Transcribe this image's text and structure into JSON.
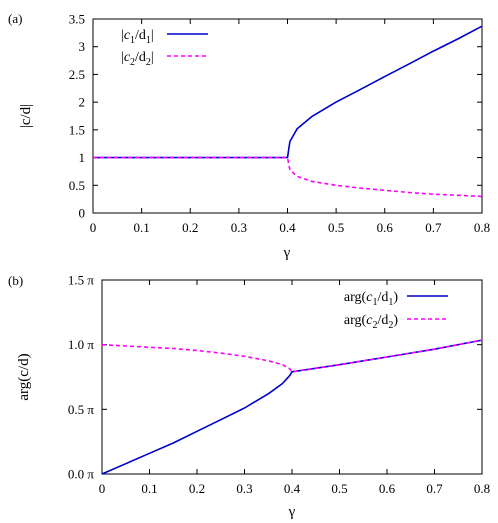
{
  "chart_data": [
    {
      "panel_label": "(a)",
      "type": "line",
      "xlabel": "γ",
      "ylabel": "|c/d|",
      "xlim": [
        0,
        0.8
      ],
      "ylim": [
        0,
        3.5
      ],
      "xticks": [
        0,
        0.1,
        0.2,
        0.3,
        0.4,
        0.5,
        0.6,
        0.7,
        0.8
      ],
      "xtick_labels": [
        "0",
        "0.1",
        "0.2",
        "0.3",
        "0.4",
        "0.5",
        "0.6",
        "0.7",
        "0.8"
      ],
      "yticks": [
        0,
        0.5,
        1,
        1.5,
        2,
        2.5,
        3,
        3.5
      ],
      "ytick_labels": [
        "0",
        "0.5",
        "1",
        "1.5",
        "2",
        "2.5",
        "3",
        "3.5"
      ],
      "grid": false,
      "legend_position": "top-left",
      "series": [
        {
          "name": "|c1/d1|",
          "color": "#0000cc",
          "style": "solid",
          "x": [
            0,
            0.1,
            0.2,
            0.3,
            0.39,
            0.4,
            0.405,
            0.42,
            0.45,
            0.5,
            0.55,
            0.6,
            0.65,
            0.7,
            0.75,
            0.8
          ],
          "y": [
            1,
            1,
            1,
            1,
            1,
            1,
            1.29,
            1.52,
            1.74,
            2.0,
            2.23,
            2.46,
            2.69,
            2.92,
            3.14,
            3.37
          ]
        },
        {
          "name": "|c2/d2|",
          "color": "#ff00ff",
          "style": "dashed",
          "x": [
            0,
            0.1,
            0.2,
            0.3,
            0.39,
            0.4,
            0.405,
            0.42,
            0.45,
            0.5,
            0.55,
            0.6,
            0.65,
            0.7,
            0.75,
            0.8
          ],
          "y": [
            1,
            1,
            1,
            1,
            1,
            1,
            0.78,
            0.66,
            0.57,
            0.5,
            0.45,
            0.41,
            0.37,
            0.34,
            0.32,
            0.3
          ]
        }
      ]
    },
    {
      "panel_label": "(b)",
      "type": "line",
      "xlabel": "γ",
      "ylabel": "arg(c/d)",
      "xlim": [
        0,
        0.8
      ],
      "ylim": [
        0,
        1.5
      ],
      "xticks": [
        0,
        0.1,
        0.2,
        0.3,
        0.4,
        0.5,
        0.6,
        0.7,
        0.8
      ],
      "xtick_labels": [
        "0",
        "0.1",
        "0.2",
        "0.3",
        "0.4",
        "0.5",
        "0.6",
        "0.7",
        "0.8"
      ],
      "yticks": [
        0,
        0.5,
        1,
        1.5
      ],
      "ytick_labels": [
        "0.0 π",
        "0.5 π",
        "1.0 π",
        "1.5 π"
      ],
      "grid": false,
      "legend_position": "top-right",
      "series": [
        {
          "name": "arg(c1/d1)",
          "color": "#0000cc",
          "style": "solid",
          "x": [
            0,
            0.05,
            0.1,
            0.15,
            0.2,
            0.25,
            0.3,
            0.35,
            0.38,
            0.395,
            0.4,
            0.5,
            0.6,
            0.7,
            0.8
          ],
          "y": [
            0,
            0.08,
            0.16,
            0.24,
            0.33,
            0.42,
            0.51,
            0.62,
            0.7,
            0.76,
            0.79,
            0.845,
            0.905,
            0.965,
            1.035
          ]
        },
        {
          "name": "arg(c2/d2)",
          "color": "#ff00ff",
          "style": "dashed",
          "x": [
            0,
            0.05,
            0.1,
            0.15,
            0.2,
            0.25,
            0.3,
            0.35,
            0.38,
            0.395,
            0.4,
            0.5,
            0.6,
            0.7,
            0.8
          ],
          "y": [
            1,
            0.99,
            0.98,
            0.97,
            0.955,
            0.935,
            0.91,
            0.875,
            0.845,
            0.815,
            0.79,
            0.845,
            0.905,
            0.965,
            1.035
          ]
        }
      ]
    }
  ]
}
